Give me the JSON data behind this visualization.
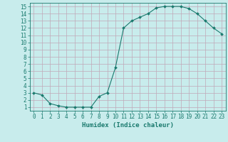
{
  "x": [
    0,
    1,
    2,
    3,
    4,
    5,
    6,
    7,
    8,
    9,
    10,
    11,
    12,
    13,
    14,
    15,
    16,
    17,
    18,
    19,
    20,
    21,
    22,
    23
  ],
  "y": [
    3.0,
    2.7,
    1.5,
    1.2,
    1.0,
    1.0,
    1.0,
    1.0,
    2.5,
    3.0,
    6.5,
    12.0,
    13.0,
    13.5,
    14.0,
    14.8,
    15.0,
    15.0,
    15.0,
    14.7,
    14.0,
    13.0,
    12.0,
    11.2
  ],
  "line_color": "#1a7a6e",
  "marker": "D",
  "marker_size": 2.0,
  "bg_color": "#c8ecec",
  "grid_color": "#c0a8b8",
  "xlabel": "Humidex (Indice chaleur)",
  "xlabel_fontsize": 6.5,
  "tick_fontsize": 5.5,
  "xlim": [
    -0.5,
    23.5
  ],
  "ylim": [
    0.5,
    15.5
  ],
  "yticks": [
    1,
    2,
    3,
    4,
    5,
    6,
    7,
    8,
    9,
    10,
    11,
    12,
    13,
    14,
    15
  ],
  "xticks": [
    0,
    1,
    2,
    3,
    4,
    5,
    6,
    7,
    8,
    9,
    10,
    11,
    12,
    13,
    14,
    15,
    16,
    17,
    18,
    19,
    20,
    21,
    22,
    23
  ]
}
